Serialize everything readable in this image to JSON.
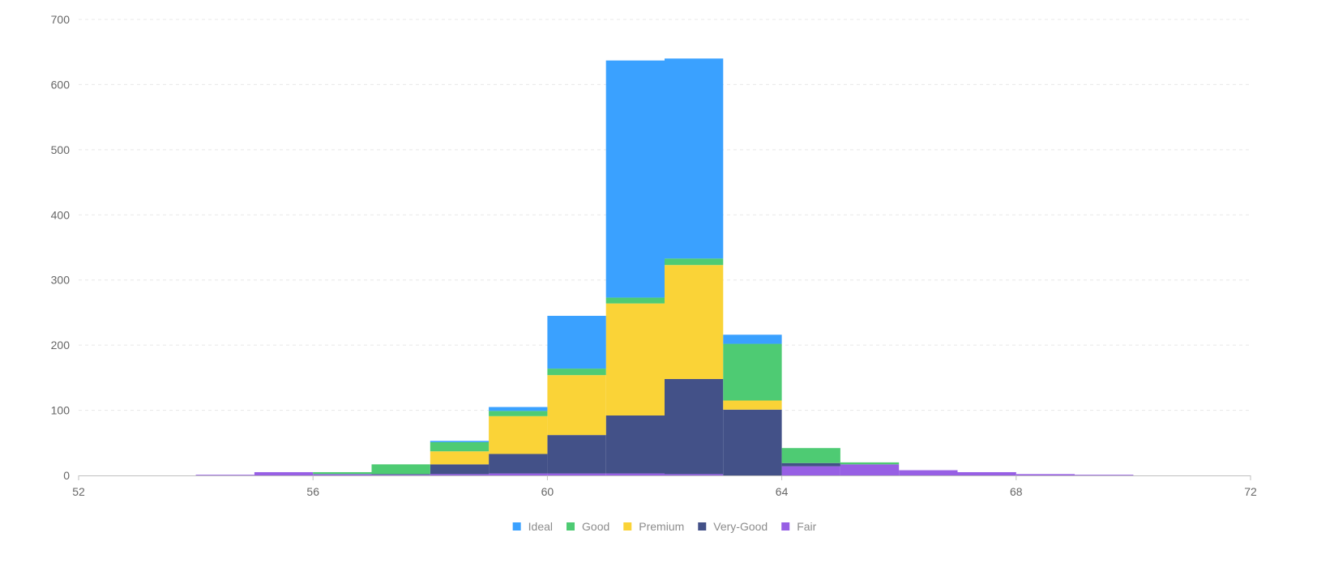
{
  "chart_data": {
    "type": "bar",
    "stacked": true,
    "bin_width": 1,
    "x_bins_start": [
      54,
      55,
      56,
      57,
      58,
      59,
      60,
      61,
      62,
      63,
      64,
      65,
      66,
      67,
      68,
      69
    ],
    "xlim": [
      52,
      72
    ],
    "xticks": [
      52,
      56,
      60,
      64,
      68,
      72
    ],
    "ylim": [
      0,
      700
    ],
    "yticks": [
      0,
      100,
      200,
      300,
      400,
      500,
      600,
      700
    ],
    "grid": "horizontal dashed",
    "legend_position": "bottom",
    "series": [
      {
        "name": "Fair",
        "color": "#975FE4",
        "values": [
          1,
          5,
          2,
          1,
          2,
          3,
          3,
          3,
          2,
          0,
          14,
          17,
          8,
          5,
          2,
          1
        ]
      },
      {
        "name": "Very-Good",
        "color": "#435188",
        "values": [
          0,
          0,
          0,
          1,
          15,
          30,
          59,
          89,
          146,
          101,
          5,
          0,
          0,
          0,
          0,
          0
        ]
      },
      {
        "name": "Premium",
        "color": "#FAD337",
        "values": [
          0,
          0,
          0,
          0,
          20,
          58,
          92,
          172,
          175,
          14,
          0,
          0,
          0,
          0,
          0,
          0
        ]
      },
      {
        "name": "Good",
        "color": "#4ECB73",
        "values": [
          0,
          0,
          3,
          15,
          14,
          8,
          10,
          9,
          10,
          87,
          23,
          3,
          0,
          0,
          0,
          0
        ]
      },
      {
        "name": "Ideal",
        "color": "#3AA1FF",
        "values": [
          0,
          0,
          0,
          0,
          2,
          6,
          81,
          364,
          307,
          14,
          0,
          0,
          0,
          0,
          0,
          0
        ]
      }
    ],
    "legend_order": [
      "Ideal",
      "Good",
      "Premium",
      "Very-Good",
      "Fair"
    ]
  }
}
